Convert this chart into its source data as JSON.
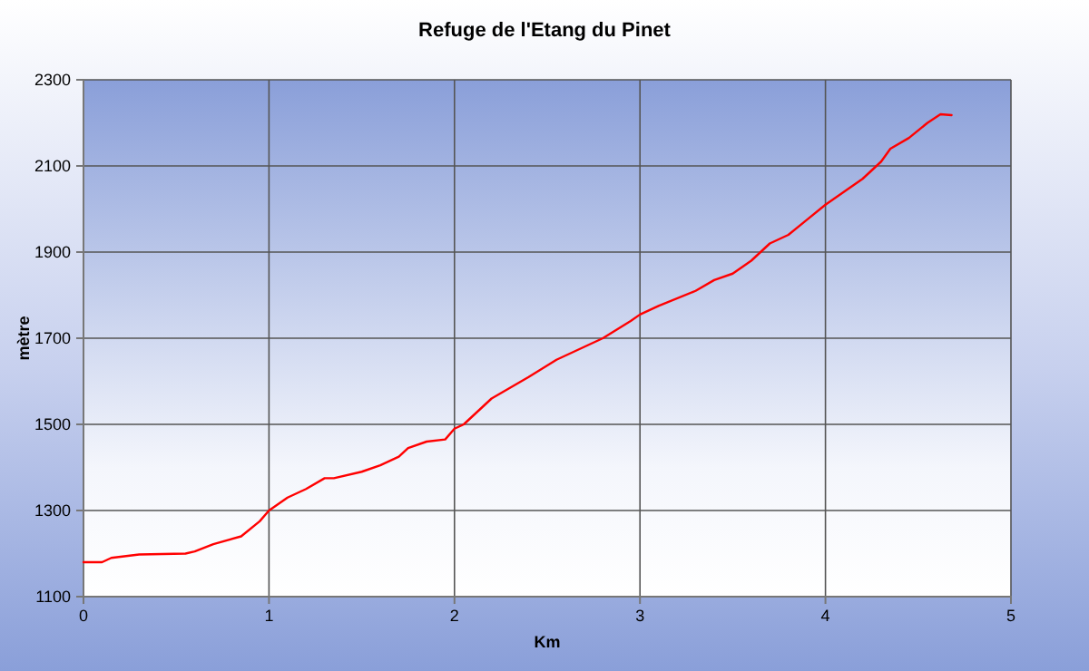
{
  "chart_data": {
    "type": "line",
    "title": "Refuge de l'Etang du Pinet",
    "xlabel": "Km",
    "ylabel": "mètre",
    "xlim": [
      0,
      5
    ],
    "xticks": [
      0,
      1,
      2,
      3,
      4,
      5
    ],
    "ylim": [
      1100,
      2300
    ],
    "yticks": [
      1100,
      1300,
      1500,
      1700,
      1900,
      2100,
      2300
    ],
    "grid": true,
    "marker": "none",
    "line_style": "solid",
    "series": [
      {
        "color": "#ff0000",
        "x": [
          0,
          0.1,
          0.15,
          0.3,
          0.55,
          0.6,
          0.7,
          0.85,
          0.95,
          1.0,
          1.1,
          1.2,
          1.3,
          1.35,
          1.5,
          1.6,
          1.7,
          1.75,
          1.85,
          1.95,
          2.0,
          2.05,
          2.1,
          2.2,
          2.4,
          2.55,
          2.7,
          2.8,
          2.95,
          3.0,
          3.1,
          3.3,
          3.4,
          3.5,
          3.6,
          3.7,
          3.8,
          3.9,
          4.0,
          4.1,
          4.2,
          4.3,
          4.35,
          4.45,
          4.55,
          4.62,
          4.68
        ],
        "values": [
          1180,
          1180,
          1190,
          1198,
          1200,
          1205,
          1222,
          1240,
          1275,
          1300,
          1330,
          1350,
          1375,
          1375,
          1390,
          1405,
          1425,
          1445,
          1460,
          1465,
          1490,
          1500,
          1520,
          1560,
          1610,
          1650,
          1680,
          1700,
          1740,
          1755,
          1775,
          1810,
          1835,
          1850,
          1880,
          1920,
          1940,
          1975,
          2010,
          2040,
          2070,
          2110,
          2140,
          2165,
          2200,
          2220,
          2218
        ]
      }
    ]
  }
}
